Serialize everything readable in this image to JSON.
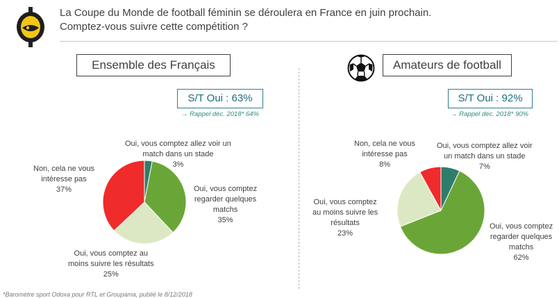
{
  "question": {
    "line1": "La Coupe du Monde de football féminin se déroulera en France en juin prochain.",
    "line2": "Comptez-vous suivre cette compétition ?"
  },
  "icons": {
    "logo": "odoxa-logo-icon",
    "ball": "soccer-ball-icon"
  },
  "colors": {
    "stade": "#2e7d6b",
    "regarder": "#6aa637",
    "resultats": "#dce8c4",
    "non": "#ef2b2b",
    "accent": "#1b6f7e",
    "logo_yellow": "#f2c617"
  },
  "footnote": "*Baromètre sport Odoxa pour RTL et Groupama, publié le 8/12/2018",
  "chart_data": [
    {
      "type": "pie",
      "title": "Ensemble des Français",
      "summary": "S/T Oui : 63%",
      "reminder": "→ Rappel déc. 2018* 64%",
      "slices": [
        {
          "key": "stade",
          "label": "Oui, vous comptez allez voir un match dans un stade",
          "value": 3,
          "lines": [
            "Oui, vous comptez allez voir un",
            "match dans un stade",
            "3%"
          ]
        },
        {
          "key": "regarder",
          "label": "Oui, vous comptez regarder quelques matchs",
          "value": 35,
          "lines": [
            "Oui, vous comptez",
            "regarder quelques",
            "matchs",
            "35%"
          ]
        },
        {
          "key": "resultats",
          "label": "Oui, vous comptez au moins suivre les résultats",
          "value": 25,
          "lines": [
            "Oui, vous comptez au",
            "moins suivre les résultats",
            "25%"
          ]
        },
        {
          "key": "non",
          "label": "Non, cela ne vous intéresse pas",
          "value": 37,
          "lines": [
            "Non, cela ne vous",
            "intéresse pas",
            "37%"
          ]
        }
      ]
    },
    {
      "type": "pie",
      "title": "Amateurs de football",
      "summary": "S/T Oui : 92%",
      "reminder": "→ Rappel déc. 2018* 90%",
      "slices": [
        {
          "key": "stade",
          "label": "Oui, vous comptez allez voir un match dans un stade",
          "value": 7,
          "lines": [
            "Oui, vous comptez allez voir",
            "un match dans un stade",
            "7%"
          ]
        },
        {
          "key": "regarder",
          "label": "Oui, vous comptez regarder quelques matchs",
          "value": 62,
          "lines": [
            "Oui, vous comptez",
            "regarder quelques",
            "matchs",
            "62%"
          ]
        },
        {
          "key": "resultats",
          "label": "Oui, vous comptez au moins suivre les résultats",
          "value": 23,
          "lines": [
            "Oui, vous comptez",
            "au moins suivre les",
            "résultats",
            "23%"
          ]
        },
        {
          "key": "non",
          "label": "Non, cela ne vous intéresse pas",
          "value": 8,
          "lines": [
            "Non, cela ne vous",
            "intéresse pas",
            "8%"
          ]
        }
      ]
    }
  ]
}
